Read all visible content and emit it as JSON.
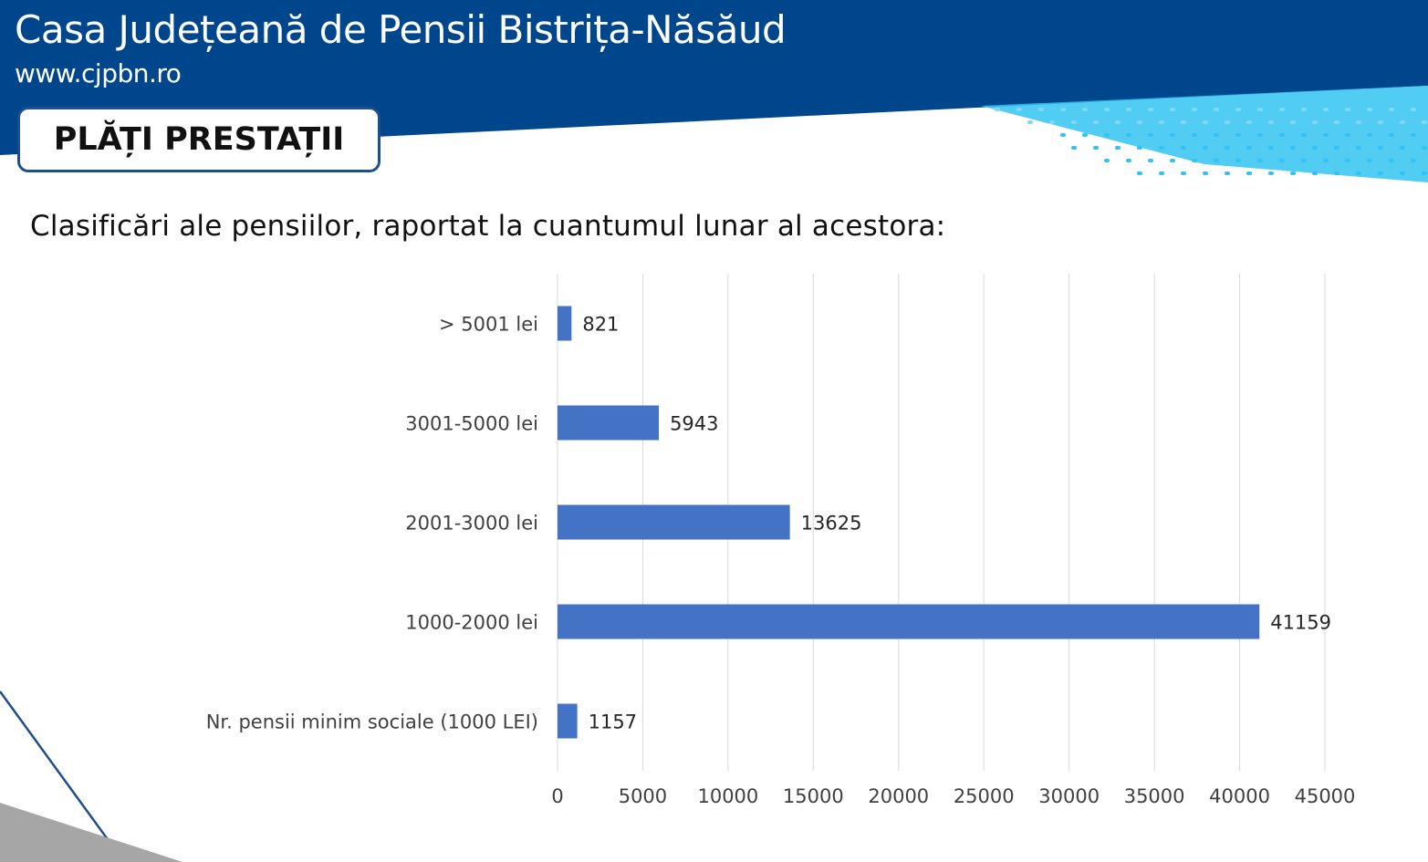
{
  "header": {
    "org_name": "Casa Județeană de Pensii Bistrița-Năsăud",
    "website": "www.cjpbn.ro"
  },
  "section_badge": {
    "label": "PLĂȚI PRESTAȚII"
  },
  "subtitle": "Clasificări ale pensiilor, raportat la cuantumul lunar al acestora:",
  "colors": {
    "header_blue": "#00468c",
    "accent_cyan": "#33c3f0",
    "bar_blue": "#4472c4",
    "grid": "#d9d9d9"
  },
  "chart_data": {
    "type": "bar",
    "orientation": "horizontal",
    "categories": [
      "> 5001 lei",
      "3001-5000 lei",
      "2001-3000 lei",
      "1000-2000 lei",
      "Nr. pensii minim sociale (1000 LEI)"
    ],
    "values": [
      821,
      5943,
      13625,
      41159,
      1157
    ],
    "data_labels": [
      "821",
      "5943",
      "13625",
      "41159",
      "1157"
    ],
    "xlim": [
      0,
      45000
    ],
    "x_ticks": [
      "0",
      "5000",
      "10000",
      "15000",
      "20000",
      "25000",
      "30000",
      "35000",
      "40000",
      "45000"
    ],
    "grid": true,
    "legend": "none",
    "title": "",
    "xlabel": "",
    "ylabel": ""
  }
}
